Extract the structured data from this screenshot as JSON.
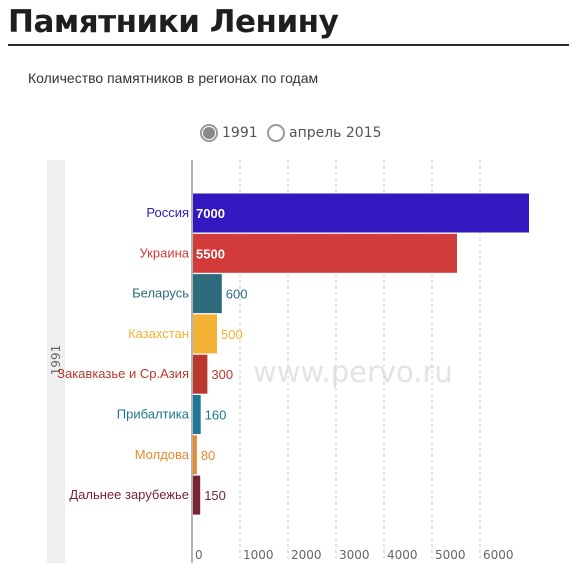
{
  "page": {
    "title": "Памятники Ленину",
    "subtitle": "Количество памятников в регионах по годам",
    "watermark": "www.pervo.ru"
  },
  "year_toggle": {
    "options": [
      "1991",
      "апрель 2015"
    ],
    "selected": "1991"
  },
  "chart_data": {
    "type": "bar",
    "orientation": "horizontal",
    "panel_label": "1991",
    "categories": [
      "Россия",
      "Украина",
      "Беларусь",
      "Казахстан",
      "Закавказье и Ср.Азия",
      "Прибалтика",
      "Молдова",
      "Дальнее зарубежье"
    ],
    "values": [
      7000,
      5500,
      600,
      500,
      300,
      160,
      80,
      150
    ],
    "value_labels": [
      "7000",
      "5500",
      "600",
      "500",
      "300",
      "160",
      "80",
      "150"
    ],
    "colors": [
      "#3219bf",
      "#d13b39",
      "#2e6b7d",
      "#f3b233",
      "#b83a2e",
      "#1d7796",
      "#e8892c",
      "#7a2535"
    ],
    "x_ticks": [
      "0",
      "1000",
      "2000",
      "3000",
      "4000",
      "5000",
      "6000"
    ],
    "xlim": [
      0,
      7100
    ],
    "grid": "vertical dashed",
    "legend": "none"
  }
}
